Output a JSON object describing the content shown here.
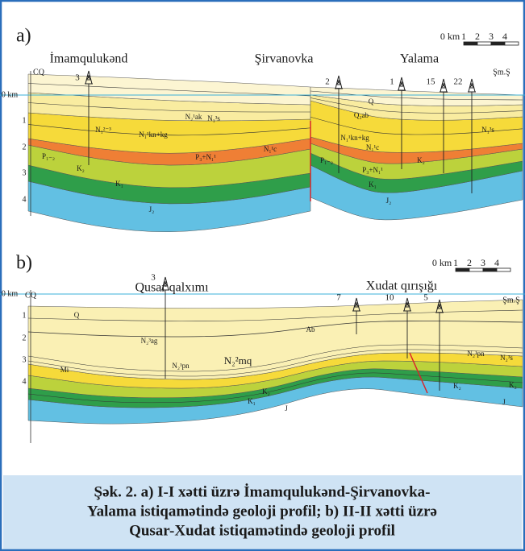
{
  "panel_a": {
    "label": "a)",
    "locations": [
      "İmamqulukənd",
      "Şirvanovka",
      "Yalama"
    ],
    "scale": [
      "0 km",
      "1",
      "2",
      "3",
      "4"
    ],
    "left_label": "CQ",
    "right_label": "Şm.Ş",
    "depths": [
      "0 km",
      "1",
      "2",
      "3",
      "4"
    ],
    "wells": [
      "3",
      "2",
      "1",
      "15",
      "22"
    ],
    "units": [
      "N₂¹ak",
      "N₁³s",
      "Q",
      "Q₃ab",
      "N₁²⁻³",
      "N₁¹kn+kg",
      "N₁¹kn+kg",
      "N₁¹c",
      "N₁¹c",
      "P₁₋₂",
      "P₃+N₁¹",
      "P₁₋₂",
      "P₃+N₁¹",
      "K₂",
      "K₂",
      "K₁",
      "K₁",
      "J₂",
      "J₂",
      "N₁³s"
    ]
  },
  "panel_b": {
    "label": "b)",
    "locations": [
      "Qusar qalxımı",
      "Xudat qırışığı"
    ],
    "scale": [
      "0 km",
      "1",
      "2",
      "3",
      "4"
    ],
    "left_label": "CQ",
    "right_label": "Şm.Ş",
    "depths": [
      "0 km",
      "1",
      "2",
      "3",
      "4"
    ],
    "wells": [
      "3",
      "7",
      "10",
      "5"
    ],
    "units": [
      "Q",
      "Ab",
      "N₂³ag",
      "N₂¹pn",
      "N₂²mq",
      "Mi",
      "K₂",
      "K₁",
      "J",
      "N₂¹pn",
      "N₂³s",
      "K₂",
      "K₂",
      "J"
    ]
  },
  "caption": [
    "Şək. 2. a) I-I xətti üzrə İmamqulukənd-Şirvanovka-",
    "Yalama istiqamətində geoloji profil; b) II-II xətti üzrə",
    "Qusar-Xudat istiqamətində geoloji profil"
  ]
}
